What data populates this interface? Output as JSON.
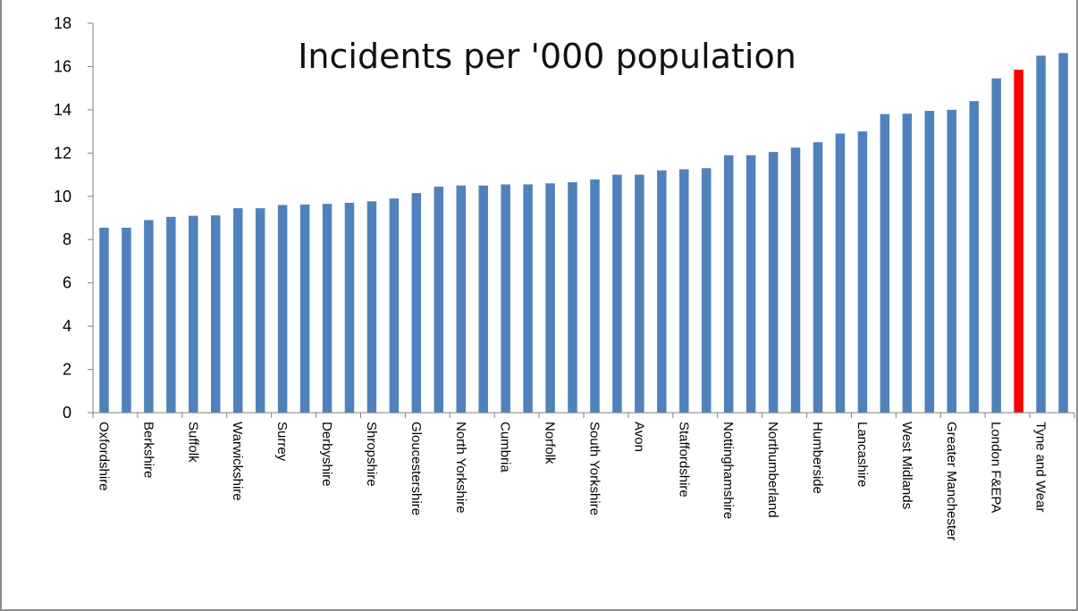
{
  "chart_data": {
    "type": "bar",
    "title": "Incidents per '000 population",
    "xlabel": "",
    "ylabel": "",
    "ylim": [
      0,
      18
    ],
    "yticks": [
      0,
      2,
      4,
      6,
      8,
      10,
      12,
      14,
      16,
      18
    ],
    "grid": false,
    "legend": "none",
    "bar_color": "#4f81bd",
    "highlight_color": "#ff0000",
    "highlight_index": 41,
    "categories": [
      "Oxfordshire",
      "",
      "Berkshire",
      "",
      "Suffolk",
      "",
      "Warwickshire",
      "",
      "Surrey",
      "",
      "Derbyshire",
      "",
      "Shropshire",
      "",
      "Gloucestershire",
      "",
      "North Yorkshire",
      "",
      "Cumbria",
      "",
      "Norfolk",
      "",
      "South Yorkshire",
      "",
      "Avon",
      "",
      "Staffordshire",
      "",
      "Nottinghamshire",
      "",
      "Northumberland",
      "",
      "Humberside",
      "",
      "Lancashire",
      "",
      "West Midlands",
      "",
      "Greater Manchester",
      "",
      "London F&EPA",
      "",
      "Tyne and Wear",
      ""
    ],
    "values": [
      8.55,
      8.55,
      8.9,
      9.05,
      9.1,
      9.12,
      9.45,
      9.45,
      9.6,
      9.62,
      9.65,
      9.7,
      9.77,
      9.9,
      10.15,
      10.45,
      10.5,
      10.5,
      10.55,
      10.55,
      10.6,
      10.65,
      10.78,
      11.0,
      11.0,
      11.2,
      11.25,
      11.3,
      11.9,
      11.9,
      12.05,
      12.25,
      12.5,
      12.9,
      13.0,
      13.8,
      13.82,
      13.95,
      14.0,
      14.4,
      15.45,
      15.85,
      16.5,
      16.62
    ]
  }
}
